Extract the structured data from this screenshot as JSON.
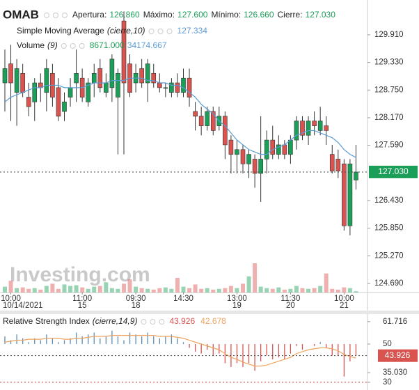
{
  "chart_data": [
    {
      "type": "candlestick",
      "title": "OMAB",
      "legend": [
        {
          "label": "Apertura:",
          "value": "126.860"
        },
        {
          "label": "Máximo:",
          "value": "127.600"
        },
        {
          "label": "Mínimo:",
          "value": "126.660"
        },
        {
          "label": "Cierre:",
          "value": "127.030"
        }
      ],
      "categories": [
        null,
        "10:00",
        null,
        null,
        null,
        null,
        null,
        null,
        null,
        null,
        null,
        null,
        null,
        "11:00",
        null,
        null,
        null,
        null,
        null,
        null,
        null,
        null,
        "09:30",
        null,
        null,
        null,
        null,
        null,
        null,
        null,
        "14:30",
        null,
        null,
        null,
        null,
        null,
        null,
        null,
        null,
        "13:00",
        null,
        null,
        null,
        null,
        null,
        null,
        null,
        null,
        "11:30",
        null,
        null,
        null,
        null,
        null,
        null,
        null,
        null,
        "10:00",
        null,
        null
      ],
      "dates": [
        null,
        "10/14/2021",
        null,
        null,
        null,
        null,
        null,
        null,
        null,
        null,
        null,
        null,
        null,
        "15",
        null,
        null,
        null,
        null,
        null,
        null,
        null,
        null,
        "18",
        null,
        null,
        null,
        null,
        null,
        null,
        null,
        null,
        null,
        null,
        null,
        null,
        null,
        null,
        null,
        null,
        "19",
        null,
        null,
        null,
        null,
        null,
        null,
        null,
        null,
        "20",
        null,
        null,
        null,
        null,
        null,
        null,
        null,
        null,
        "21",
        null,
        null
      ],
      "open": [
        128.9,
        129.3,
        128.7,
        129.1,
        128.6,
        128.5,
        128.9,
        128.7,
        129.1,
        128.8,
        128.3,
        128.6,
        128.9,
        129.0,
        128.5,
        128.9,
        129.2,
        128.7,
        128.8,
        128.6,
        130.2,
        129.3,
        128.9,
        129.2,
        128.9,
        129.1,
        128.9,
        128.8,
        128.7,
        128.9,
        128.7,
        129.0,
        128.3,
        128.2,
        128.0,
        128.3,
        128.0,
        128.2,
        127.7,
        127.4,
        127.5,
        127.2,
        127.3,
        127.0,
        127.3,
        127.7,
        127.4,
        127.6,
        127.4,
        127.7,
        128.1,
        127.8,
        128.1,
        127.9,
        128.0,
        127.4,
        127.3,
        127.2,
        125.9,
        126.86
      ],
      "high": [
        129.6,
        129.7,
        129.4,
        129.3,
        128.9,
        129.0,
        129.1,
        129.4,
        129.3,
        129.0,
        128.7,
        129.0,
        129.6,
        129.2,
        129.0,
        129.3,
        129.4,
        129.1,
        129.5,
        129.2,
        130.4,
        129.5,
        129.3,
        129.4,
        129.4,
        129.3,
        129.1,
        128.9,
        129.0,
        129.1,
        129.2,
        129.2,
        128.5,
        128.4,
        128.4,
        128.4,
        128.4,
        128.3,
        127.8,
        127.7,
        127.6,
        127.5,
        127.4,
        128.2,
        127.9,
        128.0,
        127.8,
        127.7,
        127.8,
        128.2,
        128.2,
        128.2,
        128.3,
        128.4,
        128.2,
        127.6,
        127.5,
        127.3,
        127.3,
        127.6
      ],
      "low": [
        128.3,
        128.1,
        128.0,
        128.6,
        128.2,
        128.1,
        128.5,
        128.3,
        128.4,
        128.1,
        128.1,
        128.4,
        128.5,
        128.5,
        128.4,
        128.6,
        128.7,
        128.6,
        128.5,
        127.4,
        127.4,
        128.6,
        128.7,
        128.8,
        128.5,
        128.8,
        128.7,
        128.6,
        128.6,
        128.6,
        128.6,
        128.4,
        127.9,
        127.8,
        127.9,
        127.8,
        127.9,
        127.3,
        127.0,
        127.0,
        127.0,
        126.9,
        126.7,
        126.4,
        127.0,
        127.3,
        127.3,
        127.3,
        127.2,
        127.5,
        127.7,
        127.6,
        127.8,
        127.8,
        127.6,
        127.0,
        126.9,
        125.8,
        125.7,
        126.66
      ],
      "close": [
        129.2,
        128.9,
        129.2,
        128.7,
        128.4,
        128.9,
        128.8,
        129.2,
        128.6,
        128.2,
        128.5,
        128.8,
        129.1,
        128.6,
        128.9,
        129.1,
        128.8,
        128.9,
        129.4,
        129.1,
        128.9,
        128.7,
        129.1,
        128.9,
        129.3,
        128.9,
        128.8,
        128.8,
        128.9,
        128.7,
        129.0,
        128.6,
        128.2,
        128.0,
        128.3,
        127.9,
        128.2,
        127.6,
        127.4,
        127.5,
        127.2,
        127.4,
        127.0,
        127.3,
        127.7,
        127.4,
        127.6,
        127.4,
        127.7,
        128.1,
        127.8,
        128.1,
        128.0,
        128.1,
        127.9,
        127.05,
        127.05,
        125.9,
        127.2,
        127.03
      ],
      "up_color": "#1b9e57",
      "down_color": "#d9534f",
      "ylim": [
        124.5,
        130.64
      ],
      "yticks": [
        {
          "value": 129.91,
          "label": "129.910"
        },
        {
          "value": 129.33,
          "label": "129.330"
        },
        {
          "value": 128.75,
          "label": "128.750"
        },
        {
          "value": 128.17,
          "label": "128.170"
        },
        {
          "value": 127.59,
          "label": "127.590"
        },
        {
          "value": 126.43,
          "label": "126.430"
        },
        {
          "value": 125.85,
          "label": "125.850"
        },
        {
          "value": 125.27,
          "label": "125.270"
        },
        {
          "value": 124.69,
          "label": "124.690"
        }
      ],
      "last_price": {
        "value": 127.03,
        "label": "127.030"
      },
      "sma": {
        "name": "Simple Moving Average",
        "params": "(cierre,10)",
        "color": "#5b9bd5",
        "last_label": "127.334",
        "values": [
          128.5,
          128.6,
          128.65,
          128.7,
          128.75,
          128.8,
          128.8,
          128.85,
          128.85,
          128.85,
          128.8,
          128.8,
          128.8,
          128.8,
          128.85,
          128.9,
          128.9,
          128.9,
          128.95,
          128.95,
          128.95,
          129.0,
          129.0,
          129.0,
          128.95,
          128.95,
          128.9,
          128.9,
          128.85,
          128.85,
          128.8,
          128.7,
          128.6,
          128.45,
          128.35,
          128.25,
          128.1,
          128.0,
          127.85,
          127.7,
          127.6,
          127.5,
          127.45,
          127.4,
          127.4,
          127.5,
          127.55,
          127.6,
          127.7,
          127.8,
          127.85,
          127.9,
          127.9,
          127.85,
          127.8,
          127.75,
          127.65,
          127.5,
          127.4,
          127.334
        ]
      },
      "volume": {
        "name": "Volume",
        "params": "(9)",
        "value_label": "8671.000",
        "ma_label": "34174.667",
        "values": [
          40000,
          80000,
          30000,
          35000,
          25000,
          30000,
          20000,
          45000,
          60000,
          25000,
          55000,
          45000,
          50000,
          35000,
          25000,
          40000,
          45000,
          70000,
          30000,
          25000,
          60000,
          90000,
          40000,
          30000,
          25000,
          20000,
          30000,
          35000,
          25000,
          100000,
          40000,
          30000,
          55000,
          25000,
          30000,
          20000,
          25000,
          30000,
          45000,
          30000,
          60000,
          110000,
          200000,
          40000,
          30000,
          25000,
          35000,
          20000,
          25000,
          45000,
          30000,
          25000,
          30000,
          45000,
          130000,
          25000,
          20000,
          35000,
          30000,
          8671
        ]
      },
      "watermark": "Investing.com"
    },
    {
      "type": "rsi",
      "name": "Relative Strength Index",
      "params": "(cierre,14,9)",
      "ylim": [
        26.7,
        64.2
      ],
      "yticks": [
        {
          "value": 61.716,
          "label": "61.716"
        },
        50,
        {
          "value": 35.03,
          "label": "35.030"
        },
        30
      ],
      "histogram_base": 50,
      "levels": [
        30
      ],
      "series": [
        {
          "name": "RSI",
          "up_color": "#5b8db8",
          "down_color": "#d9534f",
          "value_label": "43.926",
          "values": [
            54,
            52,
            55,
            53,
            51,
            53,
            52,
            55,
            53,
            51,
            52,
            53,
            56,
            54,
            55,
            56,
            53,
            54,
            57,
            54,
            52,
            56,
            55,
            54,
            56,
            54,
            53,
            54,
            55,
            53,
            51,
            48,
            46,
            45,
            47,
            44,
            45,
            40,
            38,
            40,
            38,
            40,
            36,
            41,
            44,
            42,
            43,
            42,
            45,
            49,
            47,
            50,
            49,
            51,
            48,
            44,
            44,
            33,
            41,
            43.926
          ]
        },
        {
          "name": "Signal",
          "color": "#f0a35e",
          "value_label": "42.678",
          "values": [
            51,
            51.5,
            52,
            52,
            52.5,
            52.5,
            52.5,
            53,
            53,
            53,
            52.5,
            52.5,
            53,
            53,
            53.5,
            54,
            54,
            54,
            54.5,
            54.5,
            54.5,
            54.5,
            54.5,
            54.5,
            54.5,
            54.5,
            54,
            54,
            54,
            53.5,
            53,
            52,
            51,
            50,
            49,
            48,
            47,
            45,
            43,
            42,
            40.5,
            39.5,
            38.5,
            38.5,
            39,
            40,
            41,
            42,
            43,
            45,
            46,
            47,
            47.5,
            48,
            48,
            47.5,
            46.5,
            44.5,
            43.5,
            42.678
          ]
        }
      ]
    }
  ]
}
